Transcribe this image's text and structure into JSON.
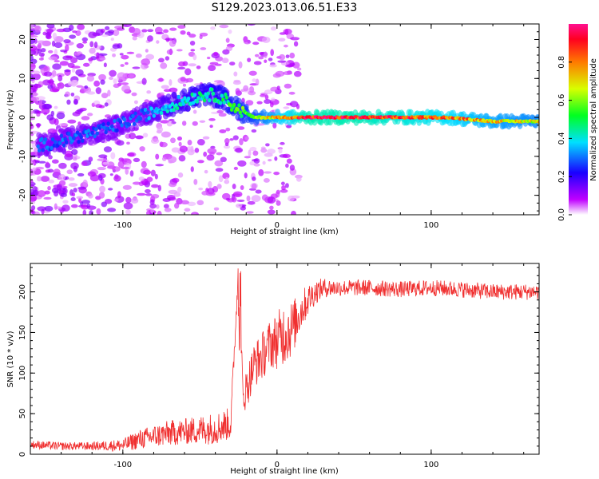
{
  "figure": {
    "title": "S129.2023.013.06.51.E33"
  },
  "chart_data": [
    {
      "type": "heatmap",
      "title": "",
      "xlabel": "Height of straight line (km)",
      "ylabel": "Frequency (Hz)",
      "xlim": [
        -160,
        170
      ],
      "ylim": [
        -25,
        24
      ],
      "xticks": [
        -100,
        0,
        100
      ],
      "yticks": [
        -20,
        -10,
        0,
        10,
        20
      ],
      "xtick_labels": [
        "-100",
        "0",
        "100"
      ],
      "ytick_labels": [
        "-20",
        "-10",
        "0",
        "10",
        "20"
      ],
      "colorbar": {
        "label": "Normalized spectral amplitude",
        "range": [
          0,
          1
        ],
        "ticks": [
          0.0,
          0.2,
          0.4,
          0.6,
          0.8
        ],
        "tick_labels": [
          "0.0",
          "0.2",
          "0.4",
          "0.6",
          "0.8"
        ],
        "colormap": [
          "#ffffff",
          "#c000ff",
          "#1a00ff",
          "#00e0ff",
          "#00ff20",
          "#d8ff00",
          "#ff7a00",
          "#ff0020",
          "#ff1090"
        ]
      },
      "ridge": {
        "description_points_x": [
          -150,
          -130,
          -110,
          -90,
          -70,
          -55,
          -45,
          -35,
          -25,
          -15,
          0,
          20,
          50,
          80,
          110,
          140,
          170
        ],
        "frequency_hz": [
          -7,
          -5,
          -3,
          0,
          3,
          5,
          6,
          5,
          2,
          0,
          0,
          0,
          0,
          0,
          0,
          -1,
          -1
        ],
        "peak_amplitude": [
          0.3,
          0.3,
          0.3,
          0.3,
          0.4,
          0.45,
          0.45,
          0.5,
          0.55,
          0.6,
          0.8,
          0.95,
          0.95,
          0.9,
          0.85,
          0.75,
          0.7
        ]
      }
    },
    {
      "type": "line",
      "title": "",
      "xlabel": "Height of straight line (km)",
      "ylabel": "SNR (10 * v/v)",
      "xlim": [
        -160,
        170
      ],
      "ylim": [
        0,
        235
      ],
      "xticks": [
        -100,
        0,
        100
      ],
      "yticks": [
        0,
        50,
        100,
        150,
        200
      ],
      "xtick_labels": [
        "-100",
        "0",
        "100"
      ],
      "ytick_labels": [
        "0",
        "50",
        "100",
        "150",
        "200"
      ],
      "color": "#f03030",
      "series": [
        {
          "x": [
            -160,
            -140,
            -120,
            -100,
            -90,
            -80,
            -70,
            -60,
            -50,
            -40,
            -30,
            -25,
            -22,
            -20,
            -15,
            -10,
            -5,
            0,
            5,
            10,
            15,
            20,
            25,
            30,
            40,
            60,
            80,
            100,
            120,
            140,
            160,
            170
          ],
          "values": [
            12,
            10,
            10,
            11,
            18,
            22,
            26,
            28,
            30,
            32,
            38,
            230,
            70,
            80,
            110,
            120,
            135,
            140,
            150,
            155,
            175,
            190,
            200,
            205,
            205,
            205,
            203,
            205,
            203,
            200,
            200,
            200
          ],
          "noise_amplitude": [
            5,
            5,
            5,
            8,
            12,
            14,
            16,
            16,
            18,
            20,
            20,
            10,
            20,
            25,
            28,
            30,
            30,
            35,
            40,
            35,
            25,
            20,
            15,
            12,
            10,
            10,
            10,
            10,
            10,
            10,
            10,
            10
          ]
        }
      ]
    }
  ]
}
